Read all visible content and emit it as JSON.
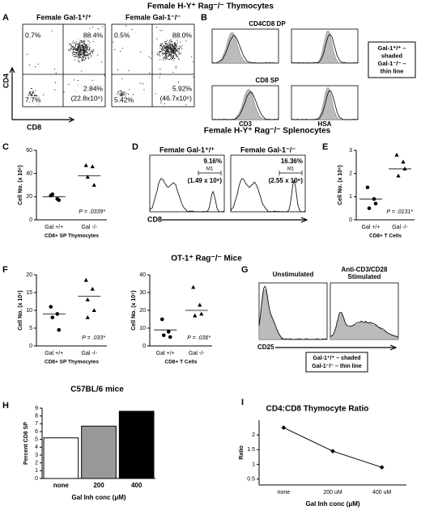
{
  "headers": [
    "Female H-Y⁺ Rag⁻/⁻ Thymocytes",
    "Female H-Y⁺ Rag⁻/⁻ Splenocytes",
    "OT-1⁺ Rag⁻/⁻ Mice"
  ],
  "panel_labels": [
    "A",
    "B",
    "C",
    "D",
    "E",
    "F",
    "G",
    "H",
    "I"
  ],
  "panel_a": {
    "y_label": "CD4",
    "x_label": "CD8",
    "plots": [
      {
        "title": "Female Gal-1⁺/⁺",
        "quadrants": [
          "0.7%",
          "88.4%",
          "7.7%",
          "2.84%",
          "(22.8x10⁶)"
        ]
      },
      {
        "title": "Female Gal-1⁻/⁻",
        "quadrants": [
          "0.5%",
          "88.0%",
          "5.42%",
          "5.92%",
          "(46.7x10⁶)"
        ]
      }
    ]
  },
  "panel_b": {
    "titles": [
      "CD4CD8 DP",
      "CD8 SP"
    ],
    "x_labels": [
      "CD3",
      "HSA"
    ],
    "legend": [
      "Gal-1⁺/⁺ –",
      "shaded",
      "Gal-1⁻/⁻ –",
      "thin line"
    ]
  },
  "panel_d": {
    "x_label": "CD8",
    "plots": [
      {
        "title": "Female Gal-1⁺/⁺",
        "percent": "9.16%",
        "count": "(1.49 x 10⁶)",
        "gate": "M1"
      },
      {
        "title": "Female Gal-1⁻/⁻",
        "percent": "16.36%",
        "count": "(2.55 x 10⁶)",
        "gate": "M1"
      }
    ]
  },
  "panel_g": {
    "titles": [
      "Unstimulated",
      "Anti-CD3/CD28",
      "Stimulated"
    ],
    "x_label": "CD25",
    "legend": [
      "Gal-1⁺/⁺ – shaded",
      "Gal-1⁻/⁻ – thin line"
    ]
  },
  "chart_data": [
    {
      "type": "dot",
      "categories": [
        "Gal +/+",
        "Gal -/-"
      ],
      "x_label": "CD8+ SP Thymocytes",
      "y_label": "Cell No. (x 10⁶)",
      "values": [
        [
          21,
          18,
          22,
          17
        ],
        [
          47,
          46,
          37,
          30
        ]
      ],
      "means": [
        20,
        38
      ],
      "annotation": "P = .0339*",
      "ylim": [
        0,
        60
      ],
      "yticks": [
        0,
        20,
        40,
        60
      ]
    },
    {
      "type": "dot",
      "categories": [
        "Gal +/+",
        "Gal -/-"
      ],
      "x_label": "CD8+ T Cells",
      "y_label": "Cell No. (x 10⁶)",
      "values": [
        [
          1.4,
          0.9,
          0.5,
          0.7
        ],
        [
          2.8,
          2.5,
          1.9,
          2.2
        ]
      ],
      "means": [
        0.9,
        2.2
      ],
      "annotation": "P = .0131*",
      "ylim": [
        0,
        3
      ],
      "yticks": [
        0,
        1,
        2,
        3
      ]
    },
    {
      "type": "dot",
      "categories": [
        "Gal +/+",
        "Gal -/-"
      ],
      "x_label": "CD8+ SP Thymocytes",
      "y_label": "Cell No. (x 10⁶)",
      "values": [
        [
          11,
          9,
          8,
          4.5
        ],
        [
          18.5,
          16,
          13,
          10,
          8
        ]
      ],
      "means": [
        9,
        14
      ],
      "annotation": "P = .033*",
      "ylim": [
        0,
        20
      ],
      "yticks": [
        0,
        5,
        10,
        15,
        20
      ]
    },
    {
      "type": "dot",
      "categories": [
        "Gal +/+",
        "Gal -/-"
      ],
      "x_label": "CD8+ T Cells",
      "y_label": "Cell No. (x 10⁶)",
      "values": [
        [
          15,
          8,
          6,
          5
        ],
        [
          33,
          23,
          17,
          18
        ]
      ],
      "means": [
        9,
        20
      ],
      "annotation": "P = .036*",
      "ylim": [
        0,
        40
      ],
      "yticks": [
        0,
        10,
        20,
        30,
        40
      ]
    },
    {
      "type": "bar",
      "title": "C57BL/6 mice",
      "categories": [
        "none",
        "200",
        "400"
      ],
      "values": [
        5.2,
        6.7,
        8.6
      ],
      "colors": [
        "#ffffff",
        "#999999",
        "#000000"
      ],
      "x_label": "Gal Inh conc (μM)",
      "y_label": "Percent CD8 SP",
      "ylim": [
        0,
        9
      ],
      "yticks": [
        0,
        1,
        2,
        3,
        4,
        5,
        6,
        7,
        8,
        9
      ]
    },
    {
      "type": "line",
      "title": "CD4:CD8 Thymocyte Ratio",
      "categories": [
        "none",
        "200 uM",
        "400 uM"
      ],
      "values": [
        2.25,
        1.45,
        0.9
      ],
      "color": "#000000",
      "x_label": "Gal Inh conc (μM)",
      "y_label": "Ratio",
      "ylim": [
        0.3,
        2.5
      ],
      "yticks": [
        0.5,
        1,
        1.5,
        2
      ]
    }
  ]
}
